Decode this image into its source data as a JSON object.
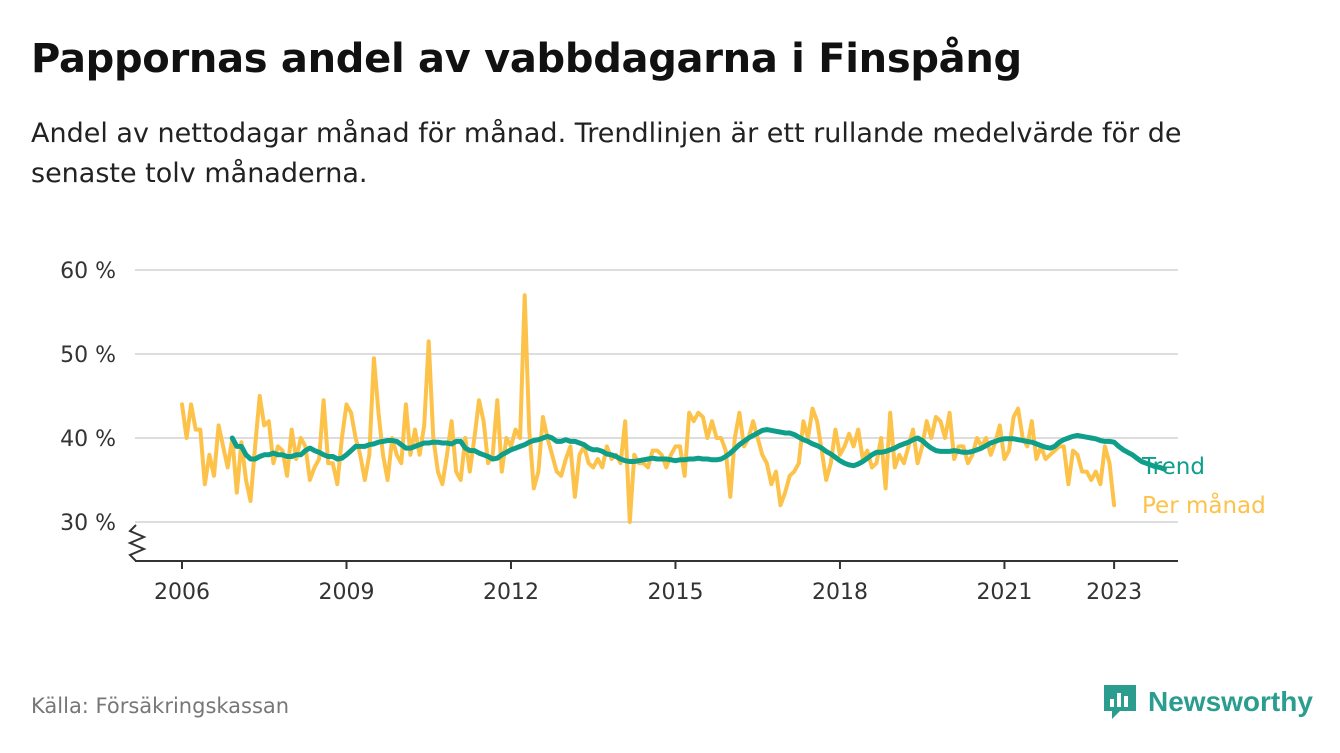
{
  "title": "Pappornas andel av vabbdagarna i Finspång",
  "subtitle": "Andel av nettodagar månad för månad. Trendlinjen är ett rullande medelvärde för de senaste tolv månaderna.",
  "source": "Källa: Försäkringskassan",
  "brand": {
    "name": "Newsworthy",
    "icon": "bar-chart-speech-bubble-icon"
  },
  "colors": {
    "per_month": "#fcc24a",
    "trend": "#0f9e8a",
    "grid": "#dddddd",
    "axis": "#333333",
    "brand": "#2a9d8f"
  },
  "chart_data": {
    "type": "line",
    "x_unit": "year",
    "xlim": [
      2005.0,
      2024.0
    ],
    "ylim": [
      25,
      60
    ],
    "yticks": [
      30,
      40,
      50,
      60
    ],
    "ytick_labels": [
      "30 %",
      "40 %",
      "50 %",
      "60 %"
    ],
    "xticks": [
      2006,
      2009,
      2012,
      2015,
      2018,
      2021,
      2023
    ],
    "xtick_labels": [
      "2006",
      "2009",
      "2012",
      "2015",
      "2018",
      "2021",
      "2023"
    ],
    "y_axis_break": true,
    "grid": "horizontal",
    "legend": "inline-right",
    "series": [
      {
        "name": "Per månad",
        "key": "per_month",
        "x_start": 2006.0,
        "x_step": 0.08333,
        "values": [
          44,
          40,
          44,
          41,
          41,
          34.5,
          38,
          35.5,
          41.5,
          39,
          36.5,
          40,
          33.5,
          39.5,
          35,
          32.5,
          39,
          45,
          41.5,
          42,
          37,
          39,
          38.5,
          35.5,
          41,
          37.5,
          40,
          39,
          35,
          36.5,
          37.5,
          44.5,
          37,
          37,
          34.5,
          40,
          44,
          43,
          40,
          38,
          35,
          38,
          49.5,
          43,
          38,
          35,
          40,
          38,
          37,
          44,
          38,
          41,
          38,
          41.5,
          51.5,
          40,
          36,
          34.5,
          38,
          42,
          36,
          35,
          40,
          36,
          40,
          44.5,
          42,
          37,
          38,
          44.5,
          36,
          40,
          39,
          41,
          40,
          57,
          41,
          34,
          36,
          42.5,
          40,
          38,
          36,
          35.5,
          37.5,
          39,
          33,
          38,
          39,
          37,
          36.5,
          37.5,
          36.5,
          39,
          37.5,
          38,
          37,
          42,
          30,
          38,
          37,
          37,
          36.5,
          38.5,
          38.5,
          38,
          36.5,
          38,
          39,
          39,
          35.5,
          43,
          42,
          43,
          42.5,
          40,
          42,
          40,
          40,
          38.5,
          33,
          40,
          43,
          39,
          40,
          42,
          40,
          38,
          37,
          34.5,
          36,
          32,
          33.5,
          35.5,
          36,
          37,
          42,
          40,
          43.5,
          42,
          38.5,
          35,
          37,
          41,
          38,
          39,
          40.5,
          39,
          41,
          37.5,
          38.5,
          36.5,
          37,
          40,
          34,
          43,
          36.5,
          38,
          37,
          39,
          41,
          37,
          39,
          42,
          40,
          42.5,
          42,
          40,
          43,
          37.5,
          39,
          39,
          37,
          38,
          40,
          39,
          40,
          38,
          39.5,
          41.5,
          37.5,
          38.5,
          42.5,
          43.5,
          40,
          39,
          42,
          37.5,
          39,
          37.5,
          38,
          38.5,
          39,
          39,
          34.5,
          38.5,
          38,
          36,
          36,
          35,
          36,
          34.5,
          39,
          37,
          32
        ]
      },
      {
        "name": "Trend",
        "key": "trend",
        "x_start": 2006.917,
        "x_step": 0.08333,
        "values": [
          40,
          39,
          39,
          38,
          37.5,
          37.5,
          37.8,
          38,
          38,
          38.2,
          38,
          38,
          37.8,
          37.8,
          38,
          38,
          38.5,
          38.8,
          38.5,
          38.3,
          38,
          37.8,
          37.8,
          37.5,
          37.6,
          38,
          38.5,
          39,
          39,
          39,
          39.2,
          39.3,
          39.5,
          39.6,
          39.7,
          39.7,
          39.6,
          39.2,
          38.8,
          38.8,
          39,
          39.2,
          39.4,
          39.4,
          39.5,
          39.5,
          39.4,
          39.4,
          39.3,
          39.6,
          39.6,
          38.8,
          38.5,
          38.5,
          38.2,
          38,
          37.8,
          37.5,
          37.6,
          38,
          38.3,
          38.6,
          38.8,
          39,
          39.2,
          39.5,
          39.7,
          39.8,
          40,
          40.2,
          40,
          39.6,
          39.6,
          39.8,
          39.6,
          39.6,
          39.4,
          39.2,
          38.8,
          38.6,
          38.6,
          38.4,
          38.1,
          38,
          37.8,
          37.5,
          37.3,
          37.2,
          37.2,
          37.3,
          37.4,
          37.5,
          37.6,
          37.5,
          37.5,
          37.5,
          37.4,
          37.3,
          37.4,
          37.4,
          37.5,
          37.5,
          37.6,
          37.5,
          37.5,
          37.4,
          37.4,
          37.5,
          37.8,
          38.2,
          38.7,
          39.2,
          39.6,
          40,
          40.3,
          40.6,
          40.9,
          41,
          40.9,
          40.8,
          40.7,
          40.6,
          40.6,
          40.4,
          40.1,
          39.8,
          39.6,
          39.3,
          39.1,
          38.8,
          38.4,
          38.1,
          37.7,
          37.3,
          37,
          36.8,
          36.7,
          36.9,
          37.2,
          37.6,
          38,
          38.3,
          38.3,
          38.4,
          38.6,
          38.8,
          39.1,
          39.3,
          39.5,
          39.8,
          40,
          39.7,
          39.2,
          38.8,
          38.5,
          38.4,
          38.4,
          38.4,
          38.5,
          38.4,
          38.3,
          38.3,
          38.4,
          38.6,
          38.8,
          39.1,
          39.4,
          39.6,
          39.8,
          39.9,
          39.9,
          39.9,
          39.8,
          39.7,
          39.6,
          39.5,
          39.3,
          39.1,
          38.9,
          38.8,
          39,
          39.5,
          39.8,
          40,
          40.2,
          40.3,
          40.2,
          40.1,
          40,
          39.9,
          39.7,
          39.6,
          39.6,
          39.5,
          39,
          38.6,
          38.3,
          38,
          37.6,
          37.2,
          37,
          36.8,
          36.6,
          36.5,
          36.3
        ]
      }
    ]
  }
}
